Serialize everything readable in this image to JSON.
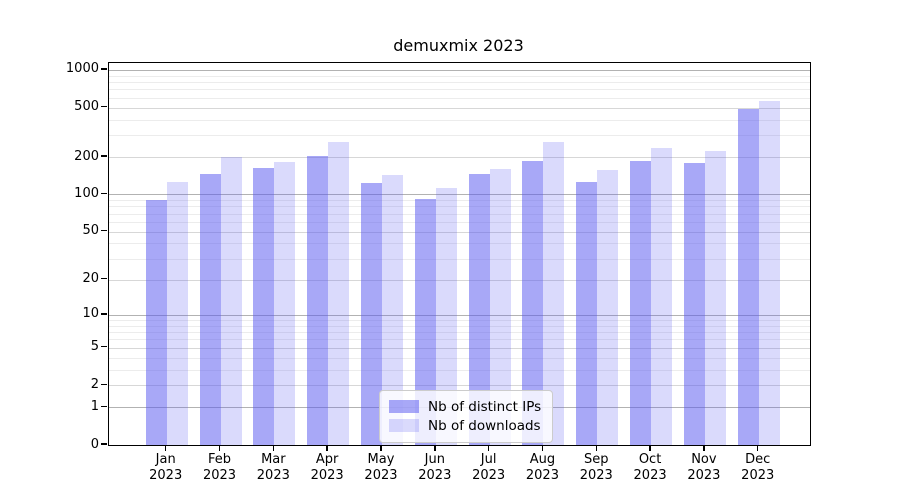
{
  "chart_data": {
    "type": "bar",
    "title": "demuxmix 2023",
    "categories": [
      "Jan",
      "Feb",
      "Mar",
      "Apr",
      "May",
      "Jun",
      "Jul",
      "Aug",
      "Sep",
      "Oct",
      "Nov",
      "Dec"
    ],
    "year": "2023",
    "series": [
      {
        "name": "Nb of distinct IPs",
        "color": "rgba(88,88,240,0.52)",
        "values": [
          91,
          146,
          165,
          205,
          123,
          92,
          147,
          187,
          127,
          186,
          178,
          490
        ]
      },
      {
        "name": "Nb of downloads",
        "color": "rgba(88,88,240,0.22)",
        "values": [
          126,
          200,
          184,
          263,
          145,
          113,
          161,
          266,
          157,
          235,
          225,
          565
        ]
      }
    ],
    "yscale": "log1p",
    "yticks": [
      0,
      1,
      2,
      5,
      10,
      20,
      50,
      100,
      200,
      500,
      1000
    ],
    "ytick_labels": [
      "0",
      "1",
      "2",
      "5",
      "10",
      "20",
      "50",
      "100",
      "200",
      "500",
      "1000"
    ],
    "ylim": [
      0,
      1140
    ],
    "xlabel": "",
    "ylabel": "",
    "grid": true,
    "legend_position": "lower center",
    "colors": {
      "grid_decade": "#b2b2b2",
      "grid_labeled": "#d7d7d7",
      "grid_minor": "#ececec",
      "axis": "#000000",
      "background": "#ffffff"
    }
  }
}
